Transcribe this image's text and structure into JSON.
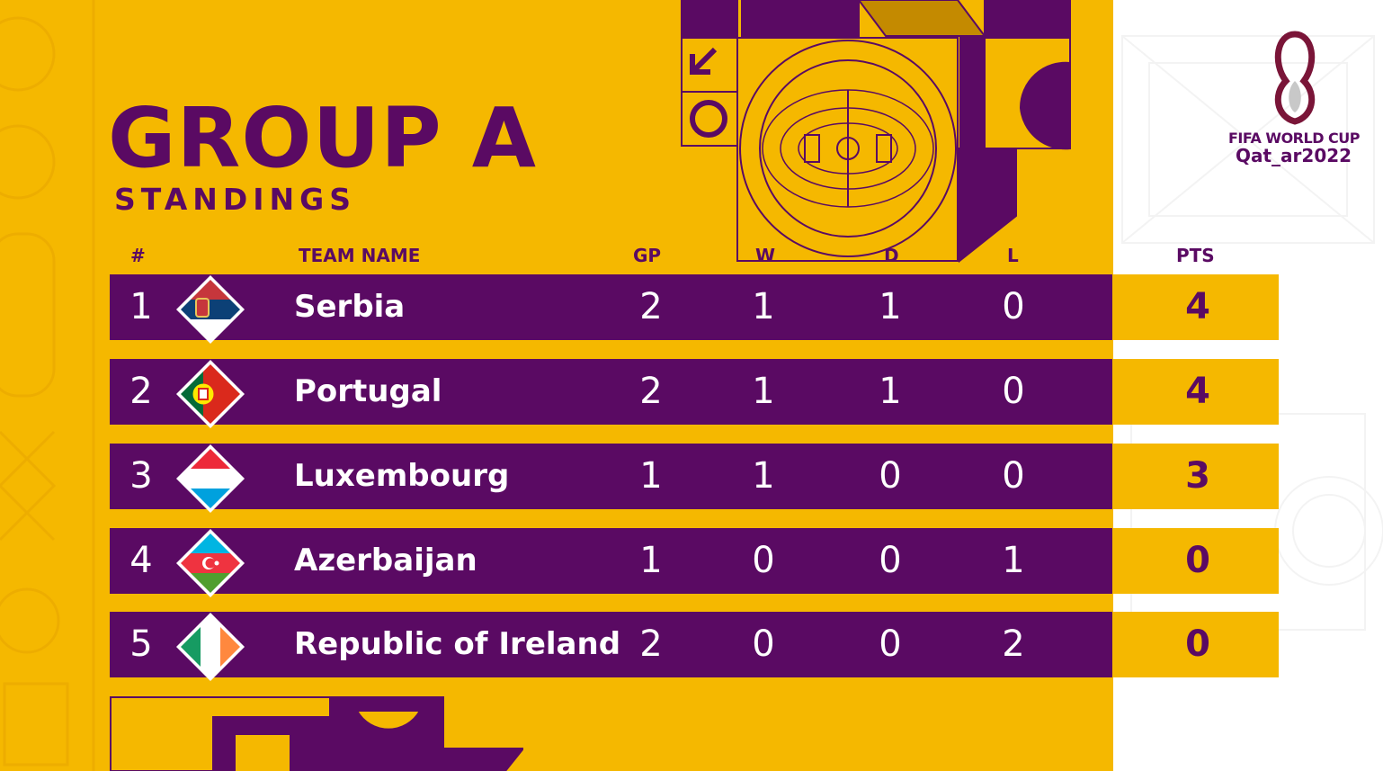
{
  "title": "GROUP A",
  "subtitle": "STANDINGS",
  "logo": {
    "line1": "FIFA WORLD CUP",
    "line2": "Qat_ar2022"
  },
  "headers": {
    "rank": "#",
    "team": "TEAM NAME",
    "gp": "GP",
    "w": "W",
    "d": "D",
    "l": "L",
    "pts": "PTS"
  },
  "colors": {
    "purple": "#5a0a63",
    "gold": "#f5b800",
    "white": "#ffffff"
  },
  "rows": [
    {
      "rank": "1",
      "team": "Serbia",
      "flag": "serbia-flag-icon",
      "gp": "2",
      "w": "1",
      "d": "1",
      "l": "0",
      "pts": "4"
    },
    {
      "rank": "2",
      "team": "Portugal",
      "flag": "portugal-flag-icon",
      "gp": "2",
      "w": "1",
      "d": "1",
      "l": "0",
      "pts": "4"
    },
    {
      "rank": "3",
      "team": "Luxembourg",
      "flag": "luxembourg-flag-icon",
      "gp": "1",
      "w": "1",
      "d": "0",
      "l": "0",
      "pts": "3"
    },
    {
      "rank": "4",
      "team": "Azerbaijan",
      "flag": "azerbaijan-flag-icon",
      "gp": "1",
      "w": "0",
      "d": "0",
      "l": "1",
      "pts": "0"
    },
    {
      "rank": "5",
      "team": "Republic of Ireland",
      "flag": "ireland-flag-icon",
      "gp": "2",
      "w": "0",
      "d": "0",
      "l": "2",
      "pts": "0"
    }
  ]
}
